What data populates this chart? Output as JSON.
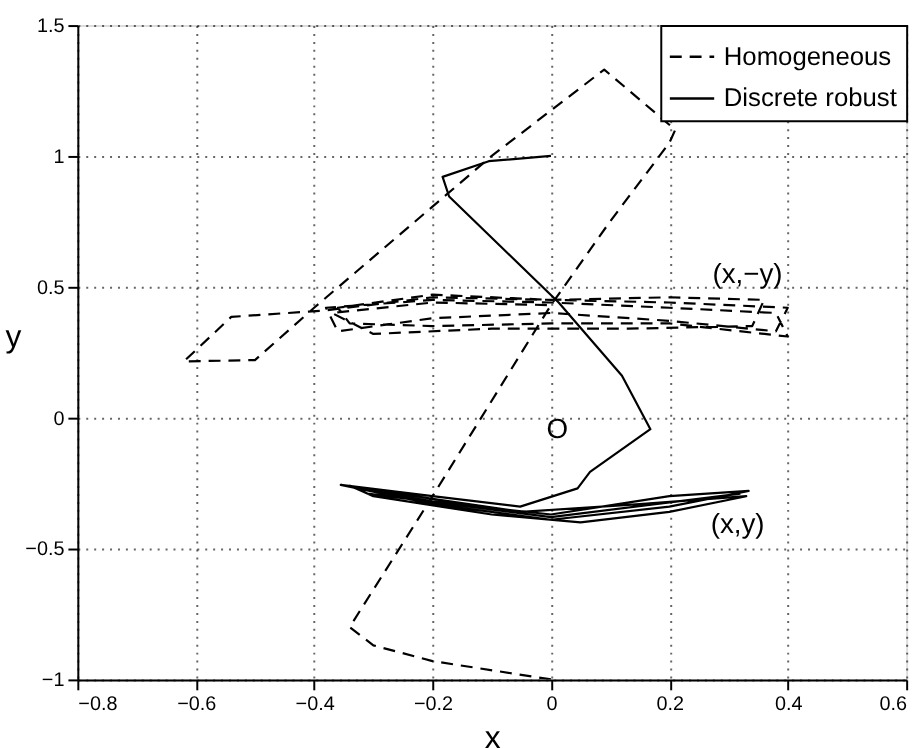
{
  "chart_data": {
    "type": "line",
    "xlabel": "x",
    "ylabel": "y",
    "xlim": [
      -0.8,
      0.6
    ],
    "xticks": [
      -0.8,
      -0.6,
      -0.4,
      -0.2,
      0,
      0.2,
      0.4,
      0.6
    ],
    "ylim": [
      -1,
      1.5
    ],
    "yticks": [
      -1,
      -0.5,
      0,
      0.5,
      1,
      1.5
    ],
    "grid": true,
    "legend": "top right",
    "series": [
      {
        "name": "Homogeneous",
        "color": "#000000",
        "line_style": "dashed",
        "x": [
          0,
          -0.2,
          -0.3,
          -0.34,
          -0.2,
          0,
          0.1,
          0.2,
          0.21,
          0.09,
          -0.1,
          -0.4,
          -0.5,
          -0.62,
          -0.54,
          -0.38,
          -0.2,
          0,
          0.2,
          0.4,
          0.38,
          0.2,
          0,
          -0.2,
          -0.36,
          -0.38,
          -0.2,
          0,
          0.2,
          0.38,
          0.4,
          0.2,
          0,
          -0.2,
          -0.34,
          -0.36,
          -0.2,
          0,
          0.2,
          0.36,
          0.34,
          0.13,
          -0.1,
          -0.3,
          -0.37,
          -0.2,
          0
        ],
        "values": [
          -1,
          -0.93,
          -0.87,
          -0.8,
          -0.3,
          0.43,
          0.75,
          1.05,
          1.1,
          1.33,
          1.0,
          0.42,
          0.22,
          0.215,
          0.385,
          0.41,
          0.46,
          0.45,
          0.44,
          0.42,
          0.33,
          0.37,
          0.4,
          0.38,
          0.33,
          0.42,
          0.45,
          0.44,
          0.42,
          0.4,
          0.31,
          0.36,
          0.36,
          0.35,
          0.36,
          0.42,
          0.47,
          0.45,
          0.46,
          0.45,
          0.35,
          0.34,
          0.34,
          0.32,
          0.4,
          0.44,
          0.43
        ]
      },
      {
        "name": "Discrete robust",
        "color": "#000000",
        "line_style": "solid",
        "x": [
          0,
          -0.105,
          -0.183,
          -0.172,
          0.013,
          0.12,
          0.168,
          0.066,
          0.045,
          -0.052,
          -0.2,
          -0.355,
          -0.2,
          0,
          0.2,
          0.334,
          0.2,
          0,
          -0.2,
          -0.33,
          -0.3,
          -0.1,
          0.05,
          0.2,
          0.33,
          0.15,
          -0.05,
          -0.2,
          -0.34,
          -0.31,
          0,
          0.32
        ],
        "values": [
          1.0,
          0.98,
          0.92,
          0.845,
          0.44,
          0.16,
          -0.044,
          -0.207,
          -0.27,
          -0.34,
          -0.3,
          -0.257,
          -0.33,
          -0.39,
          -0.34,
          -0.28,
          -0.3,
          -0.37,
          -0.32,
          -0.27,
          -0.3,
          -0.37,
          -0.4,
          -0.36,
          -0.3,
          -0.33,
          -0.36,
          -0.31,
          -0.26,
          -0.29,
          -0.38,
          -0.29
        ]
      }
    ],
    "annotations": [
      "(x,−y)",
      "(x,y)",
      "O"
    ]
  }
}
